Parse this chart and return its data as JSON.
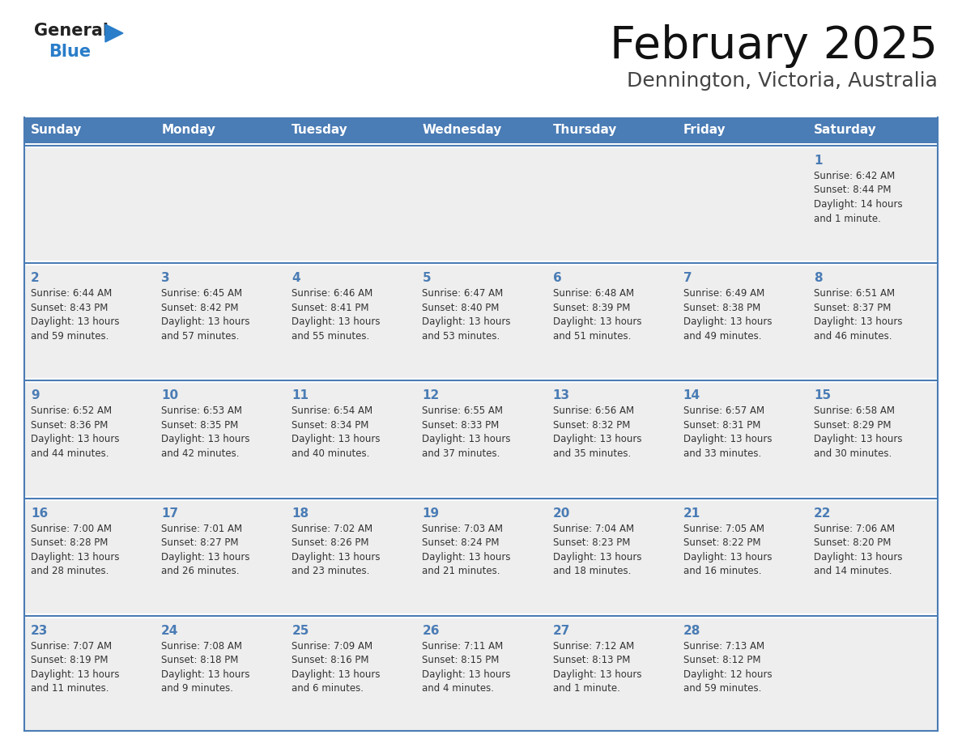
{
  "title": "February 2025",
  "subtitle": "Dennington, Victoria, Australia",
  "header_bg": "#4a7cb5",
  "header_text_color": "#ffffff",
  "cell_bg": "#eeeeee",
  "row_sep_color": "#4a7cb5",
  "day_num_color": "#4a7cb5",
  "text_color": "#333333",
  "days_of_week": [
    "Sunday",
    "Monday",
    "Tuesday",
    "Wednesday",
    "Thursday",
    "Friday",
    "Saturday"
  ],
  "weeks": [
    [
      {
        "day": null,
        "text": ""
      },
      {
        "day": null,
        "text": ""
      },
      {
        "day": null,
        "text": ""
      },
      {
        "day": null,
        "text": ""
      },
      {
        "day": null,
        "text": ""
      },
      {
        "day": null,
        "text": ""
      },
      {
        "day": 1,
        "text": "Sunrise: 6:42 AM\nSunset: 8:44 PM\nDaylight: 14 hours\nand 1 minute."
      }
    ],
    [
      {
        "day": 2,
        "text": "Sunrise: 6:44 AM\nSunset: 8:43 PM\nDaylight: 13 hours\nand 59 minutes."
      },
      {
        "day": 3,
        "text": "Sunrise: 6:45 AM\nSunset: 8:42 PM\nDaylight: 13 hours\nand 57 minutes."
      },
      {
        "day": 4,
        "text": "Sunrise: 6:46 AM\nSunset: 8:41 PM\nDaylight: 13 hours\nand 55 minutes."
      },
      {
        "day": 5,
        "text": "Sunrise: 6:47 AM\nSunset: 8:40 PM\nDaylight: 13 hours\nand 53 minutes."
      },
      {
        "day": 6,
        "text": "Sunrise: 6:48 AM\nSunset: 8:39 PM\nDaylight: 13 hours\nand 51 minutes."
      },
      {
        "day": 7,
        "text": "Sunrise: 6:49 AM\nSunset: 8:38 PM\nDaylight: 13 hours\nand 49 minutes."
      },
      {
        "day": 8,
        "text": "Sunrise: 6:51 AM\nSunset: 8:37 PM\nDaylight: 13 hours\nand 46 minutes."
      }
    ],
    [
      {
        "day": 9,
        "text": "Sunrise: 6:52 AM\nSunset: 8:36 PM\nDaylight: 13 hours\nand 44 minutes."
      },
      {
        "day": 10,
        "text": "Sunrise: 6:53 AM\nSunset: 8:35 PM\nDaylight: 13 hours\nand 42 minutes."
      },
      {
        "day": 11,
        "text": "Sunrise: 6:54 AM\nSunset: 8:34 PM\nDaylight: 13 hours\nand 40 minutes."
      },
      {
        "day": 12,
        "text": "Sunrise: 6:55 AM\nSunset: 8:33 PM\nDaylight: 13 hours\nand 37 minutes."
      },
      {
        "day": 13,
        "text": "Sunrise: 6:56 AM\nSunset: 8:32 PM\nDaylight: 13 hours\nand 35 minutes."
      },
      {
        "day": 14,
        "text": "Sunrise: 6:57 AM\nSunset: 8:31 PM\nDaylight: 13 hours\nand 33 minutes."
      },
      {
        "day": 15,
        "text": "Sunrise: 6:58 AM\nSunset: 8:29 PM\nDaylight: 13 hours\nand 30 minutes."
      }
    ],
    [
      {
        "day": 16,
        "text": "Sunrise: 7:00 AM\nSunset: 8:28 PM\nDaylight: 13 hours\nand 28 minutes."
      },
      {
        "day": 17,
        "text": "Sunrise: 7:01 AM\nSunset: 8:27 PM\nDaylight: 13 hours\nand 26 minutes."
      },
      {
        "day": 18,
        "text": "Sunrise: 7:02 AM\nSunset: 8:26 PM\nDaylight: 13 hours\nand 23 minutes."
      },
      {
        "day": 19,
        "text": "Sunrise: 7:03 AM\nSunset: 8:24 PM\nDaylight: 13 hours\nand 21 minutes."
      },
      {
        "day": 20,
        "text": "Sunrise: 7:04 AM\nSunset: 8:23 PM\nDaylight: 13 hours\nand 18 minutes."
      },
      {
        "day": 21,
        "text": "Sunrise: 7:05 AM\nSunset: 8:22 PM\nDaylight: 13 hours\nand 16 minutes."
      },
      {
        "day": 22,
        "text": "Sunrise: 7:06 AM\nSunset: 8:20 PM\nDaylight: 13 hours\nand 14 minutes."
      }
    ],
    [
      {
        "day": 23,
        "text": "Sunrise: 7:07 AM\nSunset: 8:19 PM\nDaylight: 13 hours\nand 11 minutes."
      },
      {
        "day": 24,
        "text": "Sunrise: 7:08 AM\nSunset: 8:18 PM\nDaylight: 13 hours\nand 9 minutes."
      },
      {
        "day": 25,
        "text": "Sunrise: 7:09 AM\nSunset: 8:16 PM\nDaylight: 13 hours\nand 6 minutes."
      },
      {
        "day": 26,
        "text": "Sunrise: 7:11 AM\nSunset: 8:15 PM\nDaylight: 13 hours\nand 4 minutes."
      },
      {
        "day": 27,
        "text": "Sunrise: 7:12 AM\nSunset: 8:13 PM\nDaylight: 13 hours\nand 1 minute."
      },
      {
        "day": 28,
        "text": "Sunrise: 7:13 AM\nSunset: 8:12 PM\nDaylight: 12 hours\nand 59 minutes."
      },
      {
        "day": null,
        "text": ""
      }
    ]
  ],
  "logo_general_color": "#222222",
  "logo_blue_color": "#2a7dc9",
  "logo_triangle_color": "#2a7dc9",
  "title_fontsize": 40,
  "subtitle_fontsize": 18,
  "header_fontsize": 11,
  "day_num_fontsize": 11,
  "cell_text_fontsize": 8.5
}
